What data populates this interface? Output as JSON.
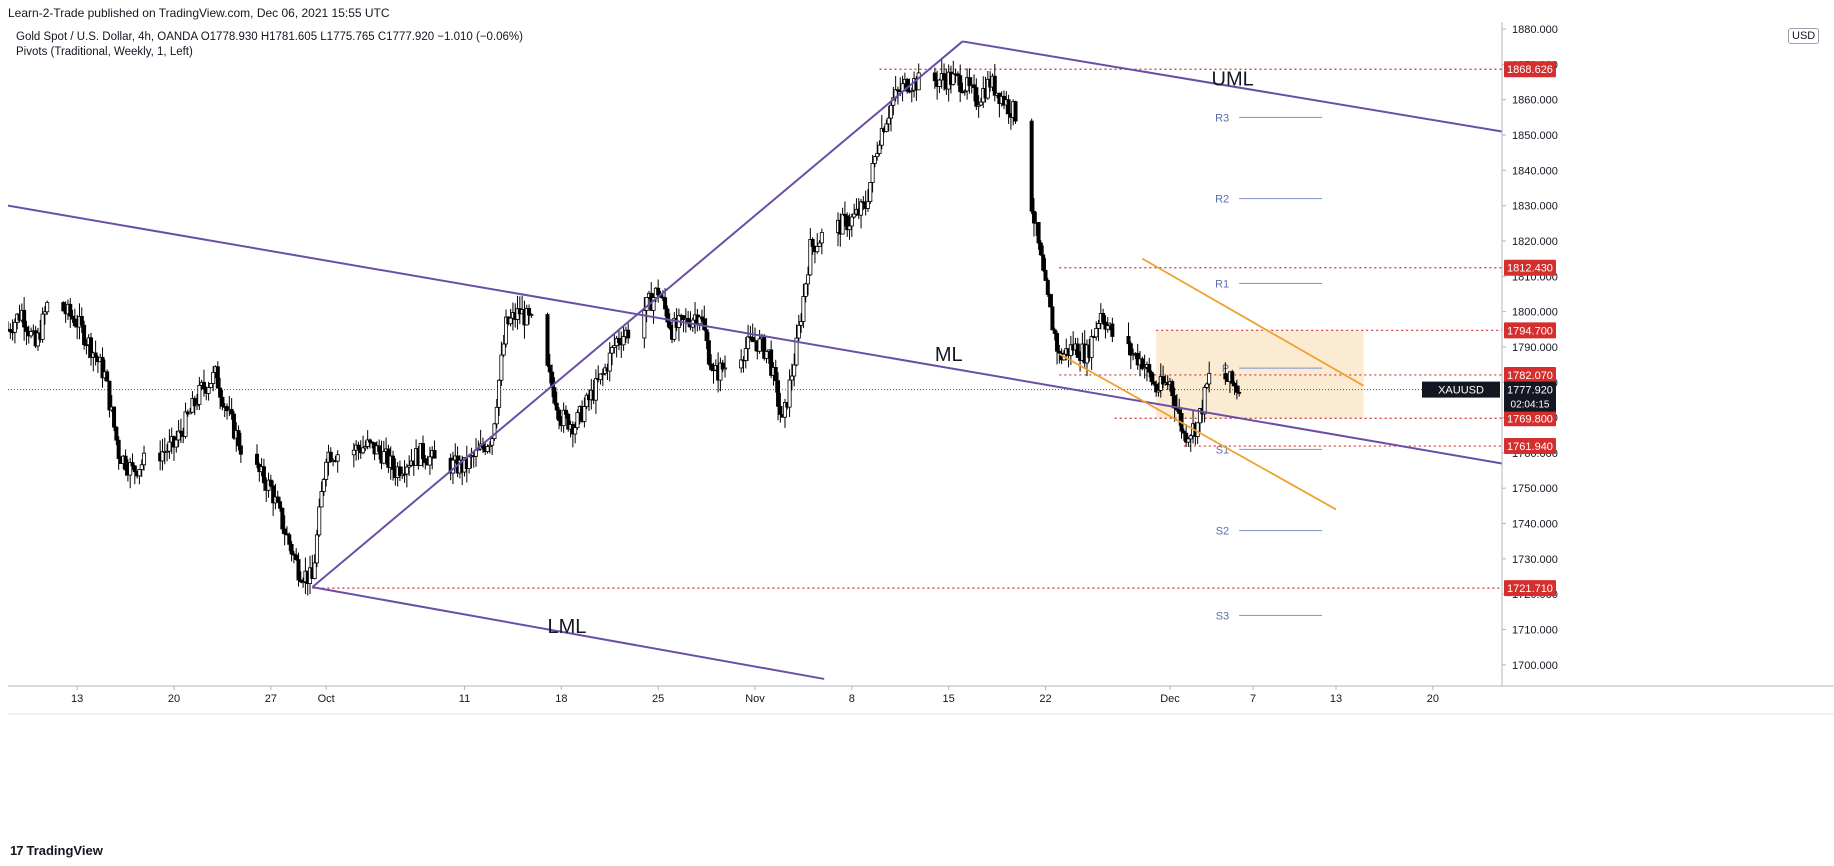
{
  "header": {
    "published": "Learn-2-Trade published on TradingView.com, Dec 06, 2021 15:55 UTC",
    "legend_line1": "Gold Spot / U.S. Dollar, 4h, OANDA  O1778.930  H1781.605  L1775.765  C1777.920  −1.010 (−0.06%)",
    "legend_line2": "Pivots (Traditional, Weekly, 1, Left)",
    "currency": "USD"
  },
  "footer": {
    "logo_text": "TradingView"
  },
  "colors": {
    "bull": "#ffffff",
    "bear": "#000000",
    "candle_outline": "#000000",
    "pitchfork": "#6a4fa8",
    "channel": "#f0a030",
    "level": "#d32f2f",
    "pivot": "#7b8fc8",
    "zone_fill": "#fbe6c8"
  },
  "chart_data": {
    "type": "candlestick",
    "symbol": "XAUUSD",
    "timeframe": "4h",
    "ylim": [
      1694,
      1882
    ],
    "y_ticks": [
      1700,
      1710,
      1720,
      1730,
      1740,
      1750,
      1760,
      1770,
      1780,
      1790,
      1800,
      1810,
      1820,
      1830,
      1840,
      1850,
      1860,
      1870,
      1880
    ],
    "y_tick_labels": [
      "1700.000",
      "1710.000",
      "1720.000",
      "1730.000",
      "1740.000",
      "1750.000",
      "1760.000",
      "1770.000",
      "1780.000",
      "1790.000",
      "1800.000",
      "1810.000",
      "1820.000",
      "1830.000",
      "1840.000",
      "1850.000",
      "1860.000",
      "1870.000",
      "1880.000"
    ],
    "x_ticks": [
      {
        "label": "13",
        "date": "2021-09-13"
      },
      {
        "label": "20",
        "date": "2021-09-20"
      },
      {
        "label": "27",
        "date": "2021-09-27"
      },
      {
        "label": "Oct",
        "date": "2021-10-01"
      },
      {
        "label": "11",
        "date": "2021-10-11"
      },
      {
        "label": "18",
        "date": "2021-10-18"
      },
      {
        "label": "25",
        "date": "2021-10-25"
      },
      {
        "label": "Nov",
        "date": "2021-11-01"
      },
      {
        "label": "8",
        "date": "2021-11-08"
      },
      {
        "label": "15",
        "date": "2021-11-15"
      },
      {
        "label": "22",
        "date": "2021-11-22"
      },
      {
        "label": "Dec",
        "date": "2021-12-01"
      },
      {
        "label": "7",
        "date": "2021-12-07"
      },
      {
        "label": "13",
        "date": "2021-12-13"
      },
      {
        "label": "20",
        "date": "2021-12-20"
      }
    ],
    "x_start": "2021-09-08",
    "x_end": "2021-12-25",
    "price_path": [
      [
        "2021-09-08",
        1795
      ],
      [
        "2021-09-09",
        1800
      ],
      [
        "2021-09-10",
        1790
      ],
      [
        "2021-09-11",
        1804
      ],
      [
        "2021-09-13",
        1797
      ],
      [
        "2021-09-14",
        1790
      ],
      [
        "2021-09-15",
        1782
      ],
      [
        "2021-09-16",
        1760
      ],
      [
        "2021-09-17",
        1755
      ],
      [
        "2021-09-18",
        1758
      ],
      [
        "2021-09-20",
        1762
      ],
      [
        "2021-09-21",
        1770
      ],
      [
        "2021-09-22",
        1778
      ],
      [
        "2021-09-23",
        1782
      ],
      [
        "2021-09-24",
        1770
      ],
      [
        "2021-09-25",
        1760
      ],
      [
        "2021-09-27",
        1750
      ],
      [
        "2021-09-28",
        1738
      ],
      [
        "2021-09-29",
        1727
      ],
      [
        "2021-09-30",
        1724
      ],
      [
        "2021-10-01",
        1760
      ],
      [
        "2021-10-02",
        1760
      ],
      [
        "2021-10-04",
        1762
      ],
      [
        "2021-10-05",
        1760
      ],
      [
        "2021-10-06",
        1755
      ],
      [
        "2021-10-07",
        1758
      ],
      [
        "2021-10-08",
        1760
      ],
      [
        "2021-10-09",
        1757
      ],
      [
        "2021-10-11",
        1756
      ],
      [
        "2021-10-12",
        1760
      ],
      [
        "2021-10-13",
        1765
      ],
      [
        "2021-10-14",
        1796
      ],
      [
        "2021-10-15",
        1800
      ],
      [
        "2021-10-16",
        1796
      ],
      [
        "2021-10-18",
        1770
      ],
      [
        "2021-10-19",
        1768
      ],
      [
        "2021-10-20",
        1775
      ],
      [
        "2021-10-21",
        1782
      ],
      [
        "2021-10-22",
        1792
      ],
      [
        "2021-10-23",
        1795
      ],
      [
        "2021-10-25",
        1806
      ],
      [
        "2021-10-26",
        1795
      ],
      [
        "2021-10-27",
        1797
      ],
      [
        "2021-10-28",
        1800
      ],
      [
        "2021-10-29",
        1782
      ],
      [
        "2021-10-30",
        1785
      ],
      [
        "2021-11-01",
        1792
      ],
      [
        "2021-11-02",
        1788
      ],
      [
        "2021-11-03",
        1768
      ],
      [
        "2021-11-04",
        1790
      ],
      [
        "2021-11-05",
        1818
      ],
      [
        "2021-11-06",
        1822
      ],
      [
        "2021-11-08",
        1826
      ],
      [
        "2021-11-09",
        1830
      ],
      [
        "2021-11-10",
        1850
      ],
      [
        "2021-11-11",
        1860
      ],
      [
        "2021-11-12",
        1865
      ],
      [
        "2021-11-13",
        1865
      ],
      [
        "2021-11-15",
        1866
      ],
      [
        "2021-11-16",
        1865
      ],
      [
        "2021-11-17",
        1860
      ],
      [
        "2021-11-18",
        1865
      ],
      [
        "2021-11-19",
        1860
      ],
      [
        "2021-11-20",
        1855
      ],
      [
        "2021-11-22",
        1806
      ],
      [
        "2021-11-23",
        1787
      ],
      [
        "2021-11-24",
        1790
      ],
      [
        "2021-11-25",
        1788
      ],
      [
        "2021-11-26",
        1800
      ],
      [
        "2021-11-27",
        1792
      ],
      [
        "2021-11-29",
        1786
      ],
      [
        "2021-11-30",
        1778
      ],
      [
        "2021-12-01",
        1780
      ],
      [
        "2021-12-02",
        1765
      ],
      [
        "2021-12-03",
        1768
      ],
      [
        "2021-12-04",
        1784
      ],
      [
        "2021-12-06",
        1778
      ]
    ],
    "levels": [
      {
        "label": "1868.626",
        "value": 1868.626,
        "from": "2021-11-10"
      },
      {
        "label": "1812.430",
        "value": 1812.43,
        "from": "2021-11-23"
      },
      {
        "label": "1794.700",
        "value": 1794.7,
        "from": "2021-11-30"
      },
      {
        "label": "1782.070",
        "value": 1782.07,
        "from": "2021-11-23"
      },
      {
        "label": "1769.800",
        "value": 1769.8,
        "from": "2021-11-27"
      },
      {
        "label": "1761.940",
        "value": 1761.94,
        "from": "2021-12-02"
      },
      {
        "label": "1721.710",
        "value": 1721.71,
        "from": "2021-09-30"
      }
    ],
    "current_price": {
      "symbol": "XAUUSD",
      "label": "1777.920",
      "value": 1777.92,
      "countdown": "02:04:15"
    },
    "pivots": [
      {
        "label": "R3",
        "value": 1855
      },
      {
        "label": "R2",
        "value": 1832
      },
      {
        "label": "R1",
        "value": 1808
      },
      {
        "label": "P",
        "value": 1784
      },
      {
        "label": "S1",
        "value": 1761
      },
      {
        "label": "S2",
        "value": 1738
      },
      {
        "label": "S3",
        "value": 1714
      }
    ],
    "pivot_range": [
      "2021-12-06",
      "2021-12-12"
    ],
    "pitchfork": [
      {
        "label": "UML",
        "points": [
          [
            "2021-11-16",
            1876.5
          ],
          [
            "2021-12-25",
            1851
          ]
        ],
        "label_at": [
          "2021-12-04",
          1864
        ]
      },
      {
        "label": "ML",
        "points": [
          [
            "2021-09-08",
            1830
          ],
          [
            "2021-12-25",
            1757
          ]
        ],
        "label_at": [
          "2021-11-14",
          1786
        ]
      },
      {
        "label": "LML",
        "points": [
          [
            "2021-09-30",
            1722
          ],
          [
            "2021-11-06",
            1696
          ]
        ],
        "label_at": [
          "2021-10-17",
          1709
        ]
      },
      {
        "label": "",
        "points": [
          [
            "2021-09-30",
            1722
          ],
          [
            "2021-11-16",
            1876.5
          ]
        ]
      }
    ],
    "channel": [
      {
        "points": [
          [
            "2021-11-29",
            1815
          ],
          [
            "2021-12-15",
            1779
          ]
        ]
      },
      {
        "points": [
          [
            "2021-11-23",
            1788
          ],
          [
            "2021-12-13",
            1744
          ]
        ]
      }
    ],
    "zone": {
      "from": "2021-11-30",
      "to": "2021-12-15",
      "top": 1794.7,
      "bottom": 1769.8
    }
  }
}
